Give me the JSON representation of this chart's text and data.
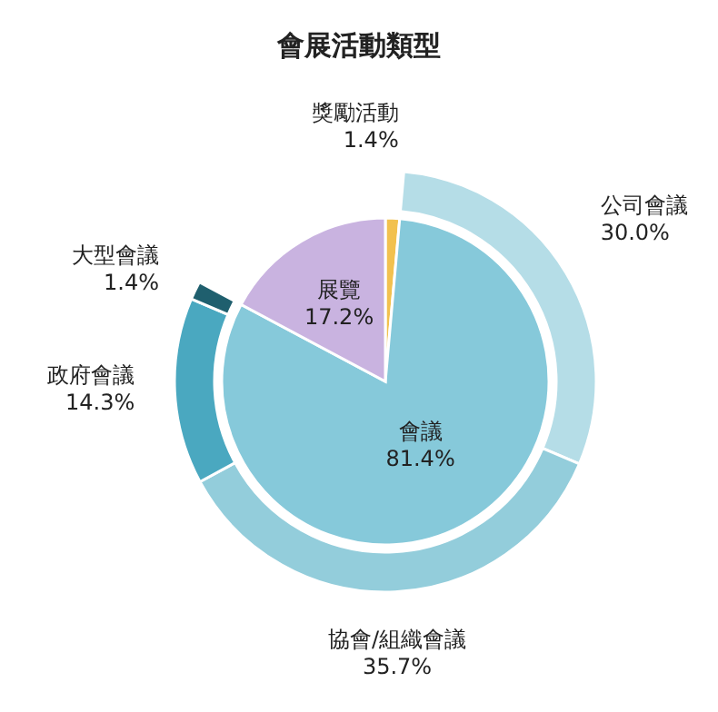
{
  "chart_data": [
    {
      "type": "pie",
      "title": "會展活動類型",
      "categories": [
        "獎勵活動",
        "會議",
        "展覽"
      ],
      "values": [
        1.4,
        81.4,
        17.2
      ],
      "colors": [
        "#f2c14e",
        "#86c9da",
        "#c9b3e0"
      ],
      "value_labels": [
        "1.4%",
        "81.4%",
        "17.2%"
      ]
    },
    {
      "type": "donut",
      "categories": [
        "公司會議",
        "協會/組織會議",
        "政府會議",
        "大型會議"
      ],
      "values": [
        30.0,
        35.7,
        14.3,
        1.4
      ],
      "colors": [
        "#b5dde7",
        "#93cddb",
        "#4aa8c0",
        "#1f5f6e"
      ],
      "value_labels": [
        "30.0%",
        "35.7%",
        "14.3%",
        "1.4%"
      ]
    }
  ]
}
